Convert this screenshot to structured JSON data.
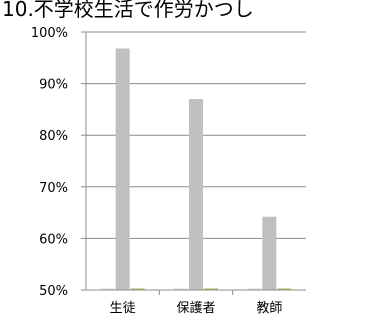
{
  "title_fragment": "10.不学校生活で作労かつし",
  "chart_data": {
    "type": "bar",
    "title": "",
    "xlabel": "",
    "ylabel": "",
    "ylim": [
      50,
      100
    ],
    "yticks": [
      50,
      60,
      70,
      80,
      90,
      100
    ],
    "ytick_labels": [
      "50%",
      "60%",
      "70%",
      "80%",
      "90%",
      "100%"
    ],
    "categories": [
      "生徒",
      "保護者",
      "教師"
    ],
    "series": [
      {
        "values": [
          50,
          50,
          50
        ],
        "color": "#d9d9d9"
      },
      {
        "values": [
          96.8,
          87.0,
          64.2
        ],
        "color": "#c0c0c0"
      },
      {
        "values": [
          50,
          50,
          50
        ],
        "color": "#9bbb59"
      }
    ],
    "grid": true,
    "legend": "none"
  }
}
